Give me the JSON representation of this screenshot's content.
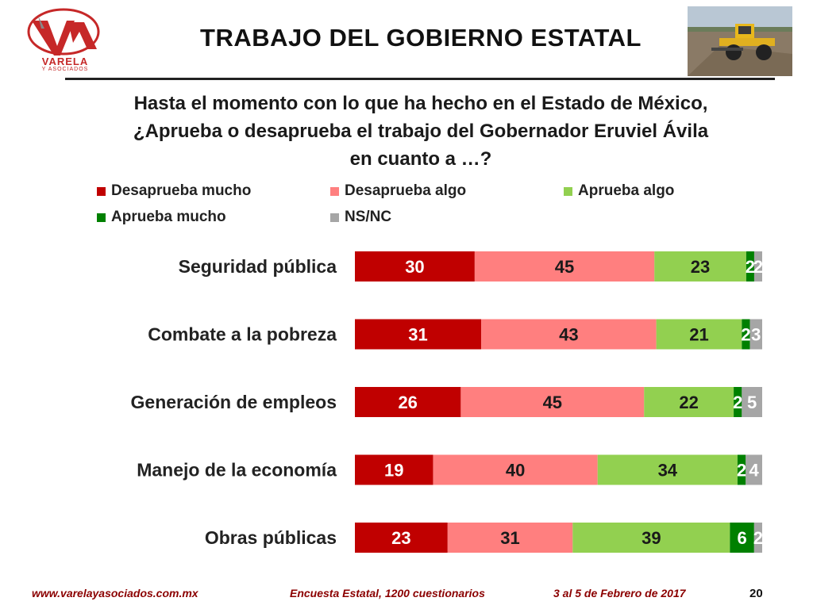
{
  "header": {
    "logo_text": "VARELA",
    "logo_subtext": "Y ASOCIADOS",
    "title": "TRABAJO DEL GOBIERNO ESTATAL"
  },
  "question": {
    "line1": "Hasta el momento con lo que ha hecho en el Estado de México,",
    "line2": "¿Aprueba o desaprueba el trabajo del Gobernador Eruviel Ávila",
    "line3": "en cuanto a …?"
  },
  "chart_data": {
    "type": "bar",
    "orientation": "horizontal",
    "stacked": true,
    "categories": [
      "Seguridad pública",
      "Combate a la pobreza",
      "Generación de empleos",
      "Manejo de la economía",
      "Obras públicas"
    ],
    "series": [
      {
        "name": "Desaprueba mucho",
        "color": "#c00000",
        "values": [
          30,
          31,
          26,
          19,
          23
        ]
      },
      {
        "name": "Desaprueba algo",
        "color": "#ff7f7f",
        "values": [
          45,
          43,
          45,
          40,
          31
        ]
      },
      {
        "name": "Aprueba algo",
        "color": "#92d050",
        "values": [
          23,
          21,
          22,
          34,
          39
        ]
      },
      {
        "name": "Aprueba mucho",
        "color": "#008000",
        "values": [
          2,
          2,
          2,
          2,
          6
        ]
      },
      {
        "name": "NS/NC",
        "color": "#a6a6a6",
        "values": [
          2,
          3,
          5,
          4,
          2
        ]
      }
    ],
    "legend_placement": "top",
    "grid": false
  },
  "footer": {
    "website": "www.varelayasociados.com.mx",
    "survey": "Encuesta Estatal, 1200 cuestionarios",
    "dates": "3 al 5 de Febrero de 2017",
    "page": "20"
  }
}
